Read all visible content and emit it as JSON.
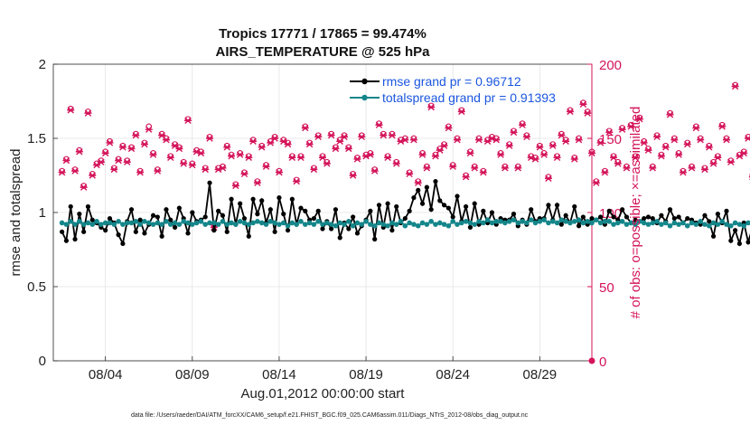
{
  "chart_data": {
    "type": "line",
    "title": "Tropics 17771 / 17865 = 99.474%",
    "subtitle": "AIRS_TEMPERATURE @ 525 hPa",
    "xlabel": "Aug.01,2012 00:00:00 start",
    "ylabel": "rmse and totalspread",
    "y2label": "# of obs: o=possible; ×=assimilated",
    "footnote": "data file: /Users/raeder/DAI/ATM_forcXX/CAM6_setup/f.e21.FHIST_BGC.f09_025.CAM6assim.011/Diags_NTrS_2012-08/obs_diag_output.nc",
    "xlim": [
      1,
      32
    ],
    "ylim": [
      0,
      2
    ],
    "y2lim": [
      0,
      200
    ],
    "x_ticks": [
      4,
      9,
      14,
      19,
      24,
      29
    ],
    "x_tick_labels": [
      "08/04",
      "08/09",
      "08/14",
      "08/19",
      "08/24",
      "08/29"
    ],
    "y_ticks": [
      0,
      0.5,
      1,
      1.5,
      2
    ],
    "y_tick_labels": [
      "0",
      "0.5",
      "1",
      "1.5",
      "2"
    ],
    "y2_ticks": [
      0,
      50,
      100,
      150,
      200
    ],
    "y2_tick_labels": [
      "0",
      "50",
      "100",
      "150",
      "200"
    ],
    "grid": true,
    "legend_position": "top-right",
    "colors": {
      "rmse": "#000000",
      "totalspread": "#14868a",
      "obs": "#d4145a",
      "legend_text": "#1a56e0"
    },
    "x_start": 1.5,
    "x_step": 0.25,
    "series": [
      {
        "name": "rmse grand pr = 0.96712",
        "axis": "left",
        "values": [
          0.87,
          0.81,
          1.04,
          0.82,
          0.99,
          0.87,
          1.04,
          0.95,
          0.93,
          0.9,
          0.88,
          0.96,
          0.93,
          0.85,
          0.79,
          0.94,
          1.02,
          0.87,
          0.95,
          0.86,
          0.92,
          0.98,
          0.97,
          0.84,
          1.02,
          0.95,
          0.9,
          1.03,
          0.96,
          0.86,
          1.0,
          0.94,
          0.95,
          0.97,
          1.2,
          0.88,
          1.01,
          0.98,
          0.87,
          1.09,
          0.92,
          1.06,
          0.96,
          0.84,
          1.09,
          0.99,
          1.08,
          0.93,
          1.02,
          0.87,
          1.1,
          0.99,
          0.88,
          1.09,
          0.92,
          1.03,
          1.01,
          0.95,
          0.96,
          1.01,
          0.89,
          0.94,
          0.89,
          1.02,
          0.83,
          0.93,
          0.89,
          0.97,
          0.86,
          0.91,
          0.95,
          1.01,
          0.82,
          1.05,
          0.9,
          1.06,
          0.88,
          1.04,
          0.93,
          0.96,
          1.01,
          1.1,
          1.15,
          1.06,
          1.17,
          1.02,
          1.21,
          1.08,
          1.05,
          1.03,
          0.97,
          1.11,
          0.94,
          1.04,
          0.9,
          1.06,
          0.92,
          1.01,
          0.93,
          1.0,
          0.92,
          0.96,
          0.95,
          0.95,
          0.99,
          0.91,
          0.95,
          0.92,
          1.02,
          0.94,
          0.96,
          0.96,
          1.05,
          0.95,
          1.05,
          0.92,
          0.98,
          0.93,
          1.04,
          0.91,
          0.97,
          0.92,
          0.96,
          0.95,
          0.97,
          0.92,
          1.01,
          0.97,
          0.95,
          1.02,
          0.97,
          0.93,
          0.95,
          0.94,
          0.96,
          0.97,
          0.96,
          0.93,
          0.98,
          0.94,
          1.02,
          0.96,
          0.97,
          0.93,
          0.96,
          0.95,
          0.93,
          0.92,
          0.98,
          0.94,
          0.84,
          0.99,
          0.93,
          1.01,
          0.81,
          0.88,
          0.79,
          0.93,
          0.8,
          0.9,
          0.83,
          0.93,
          0.89,
          0.96,
          0.87,
          0.98,
          0.91,
          1.04,
          0.89,
          1.03,
          0.86,
          1.0,
          0.91,
          1.03,
          0.88,
          0.97,
          0.9,
          1.04,
          0.86,
          1.02,
          0.88,
          0.95,
          0.85,
          1.08,
          0.87,
          0.97,
          0.92,
          0.98,
          0.85,
          1.03,
          0.87,
          0.86,
          1.0,
          0.87,
          0.97,
          0.88,
          1.05,
          0.82,
          1.02,
          0.9,
          1.0,
          0.77,
          0.92,
          0.81,
          1.0,
          0.96,
          0.9
        ]
      },
      {
        "name": "totalspread grand pr = 0.91393",
        "axis": "left",
        "values": [
          0.93,
          0.92,
          0.94,
          0.92,
          0.94,
          0.92,
          0.93,
          0.92,
          0.94,
          0.92,
          0.93,
          0.93,
          0.92,
          0.94,
          0.92,
          0.93,
          0.93,
          0.94,
          0.92,
          0.94,
          0.93,
          0.92,
          0.93,
          0.92,
          0.94,
          0.92,
          0.93,
          0.92,
          0.94,
          0.93,
          0.92,
          0.93,
          0.94,
          0.92,
          0.93,
          0.93,
          0.92,
          0.94,
          0.92,
          0.93,
          0.92,
          0.94,
          0.93,
          0.92,
          0.93,
          0.94,
          0.93,
          0.92,
          0.94,
          0.93,
          0.92,
          0.93,
          0.91,
          0.93,
          0.92,
          0.94,
          0.92,
          0.93,
          0.92,
          0.94,
          0.92,
          0.93,
          0.92,
          0.91,
          0.93,
          0.92,
          0.94,
          0.91,
          0.93,
          0.92,
          0.94,
          0.92,
          0.91,
          0.93,
          0.92,
          0.91,
          0.93,
          0.92,
          0.94,
          0.91,
          0.93,
          0.92,
          0.91,
          0.93,
          0.92,
          0.94,
          0.92,
          0.93,
          0.92,
          0.91,
          0.94,
          0.92,
          0.93,
          0.94,
          0.93,
          0.92,
          0.94,
          0.93,
          0.95,
          0.93,
          0.94,
          0.94,
          0.93,
          0.94,
          0.95,
          0.93,
          0.94,
          0.93,
          0.95,
          0.93,
          0.94,
          0.95,
          0.93,
          0.94,
          0.93,
          0.95,
          0.94,
          0.93,
          0.94,
          0.95,
          0.93,
          0.94,
          0.93,
          0.95,
          0.93,
          0.94,
          0.94,
          0.92,
          0.93,
          0.94,
          0.92,
          0.93,
          0.92,
          0.94,
          0.93,
          0.92,
          0.93,
          0.94,
          0.92,
          0.93,
          0.91,
          0.93,
          0.92,
          0.93,
          0.91,
          0.93,
          0.92,
          0.94,
          0.92,
          0.91,
          0.93,
          0.92,
          0.94,
          0.92,
          0.91,
          0.93,
          0.92,
          0.91,
          0.93,
          0.92,
          0.91,
          0.93,
          0.92,
          0.94,
          0.91,
          0.92,
          0.93,
          0.91,
          0.93,
          0.92,
          0.91,
          0.93,
          0.92,
          0.94,
          0.92,
          0.91,
          0.93,
          0.92,
          0.91,
          0.94,
          0.92,
          0.93,
          0.91,
          0.93,
          0.92,
          0.94,
          0.91,
          0.93,
          0.92,
          0.91,
          0.94,
          0.92,
          0.93,
          0.91,
          0.93,
          0.92,
          0.94,
          0.92,
          0.91,
          0.93,
          0.92,
          0.94,
          0.92,
          0.93,
          0.91,
          0.92,
          0.93,
          0.91
        ]
      },
      {
        "name": "# obs possible",
        "axis": "right",
        "marker": "o",
        "values": [
          128,
          136,
          170,
          129,
          142,
          118,
          168,
          126,
          133,
          135,
          141,
          148,
          130,
          136,
          145,
          135,
          144,
          153,
          128,
          147,
          158,
          140,
          129,
          153,
          150,
          138,
          146,
          144,
          134,
          163,
          133,
          142,
          141,
          130,
          151,
          91,
          130,
          131,
          145,
          139,
          119,
          140,
          127,
          138,
          149,
          121,
          145,
          132,
          148,
          151,
          128,
          149,
          147,
          138,
          122,
          138,
          158,
          147,
          130,
          152,
          138,
          134,
          153,
          144,
          149,
          152,
          144,
          126,
          137,
          152,
          139,
          140,
          129,
          160,
          153,
          138,
          153,
          134,
          149,
          150,
          127,
          150,
          121,
          140,
          131,
          172,
          139,
          143,
          146,
          158,
          132,
          150,
          169,
          125,
          141,
          131,
          150,
          128,
          149,
          151,
          150,
          140,
          131,
          146,
          155,
          131,
          160,
          152,
          138,
          137,
          145,
          140,
          124,
          146,
          138,
          153,
          149,
          169,
          137,
          150,
          174,
          168,
          141,
          121,
          148,
          128,
          155,
          138,
          134,
          157,
          131,
          159,
          138,
          164,
          148,
          143,
          131,
          152,
          139,
          145,
          167,
          150,
          140,
          128,
          147,
          131,
          158,
          150,
          130,
          145,
          134,
          138,
          159,
          150,
          135,
          186,
          139,
          141,
          151,
          125,
          150,
          133,
          148,
          146,
          133,
          140,
          160,
          135,
          154,
          130,
          149,
          147,
          153,
          147,
          165,
          148,
          133,
          147,
          161,
          151,
          132,
          158,
          140
        ]
      },
      {
        "name": "# obs assimilated",
        "axis": "right",
        "marker": "x",
        "values": [
          127,
          135,
          169,
          128,
          141,
          117,
          167,
          125,
          132,
          134,
          140,
          147,
          129,
          135,
          144,
          134,
          143,
          152,
          127,
          146,
          156,
          139,
          128,
          152,
          149,
          137,
          145,
          143,
          133,
          162,
          132,
          141,
          140,
          129,
          150,
          90,
          129,
          130,
          144,
          138,
          118,
          139,
          126,
          137,
          148,
          120,
          144,
          131,
          147,
          150,
          127,
          148,
          146,
          137,
          121,
          137,
          157,
          146,
          129,
          151,
          137,
          133,
          152,
          143,
          148,
          151,
          143,
          125,
          136,
          151,
          138,
          139,
          128,
          159,
          152,
          137,
          152,
          133,
          148,
          149,
          126,
          149,
          120,
          139,
          130,
          171,
          138,
          142,
          145,
          157,
          131,
          149,
          168,
          124,
          140,
          130,
          149,
          127,
          148,
          150,
          149,
          139,
          130,
          145,
          154,
          130,
          159,
          151,
          137,
          136,
          144,
          139,
          123,
          145,
          137,
          152,
          148,
          168,
          136,
          149,
          173,
          167,
          140,
          120,
          147,
          127,
          154,
          137,
          133,
          156,
          130,
          158,
          137,
          163,
          147,
          142,
          130,
          151,
          138,
          144,
          166,
          149,
          139,
          127,
          146,
          130,
          157,
          149,
          129,
          144,
          133,
          137,
          158,
          149,
          134,
          185,
          138,
          140,
          150,
          124,
          149,
          132,
          147,
          145,
          132,
          139,
          159,
          134,
          153,
          129,
          148,
          146,
          152,
          146,
          164,
          147,
          132,
          146,
          160,
          150,
          131,
          157,
          139
        ]
      }
    ],
    "edge_marker": {
      "x": 32,
      "y2": 0
    }
  }
}
